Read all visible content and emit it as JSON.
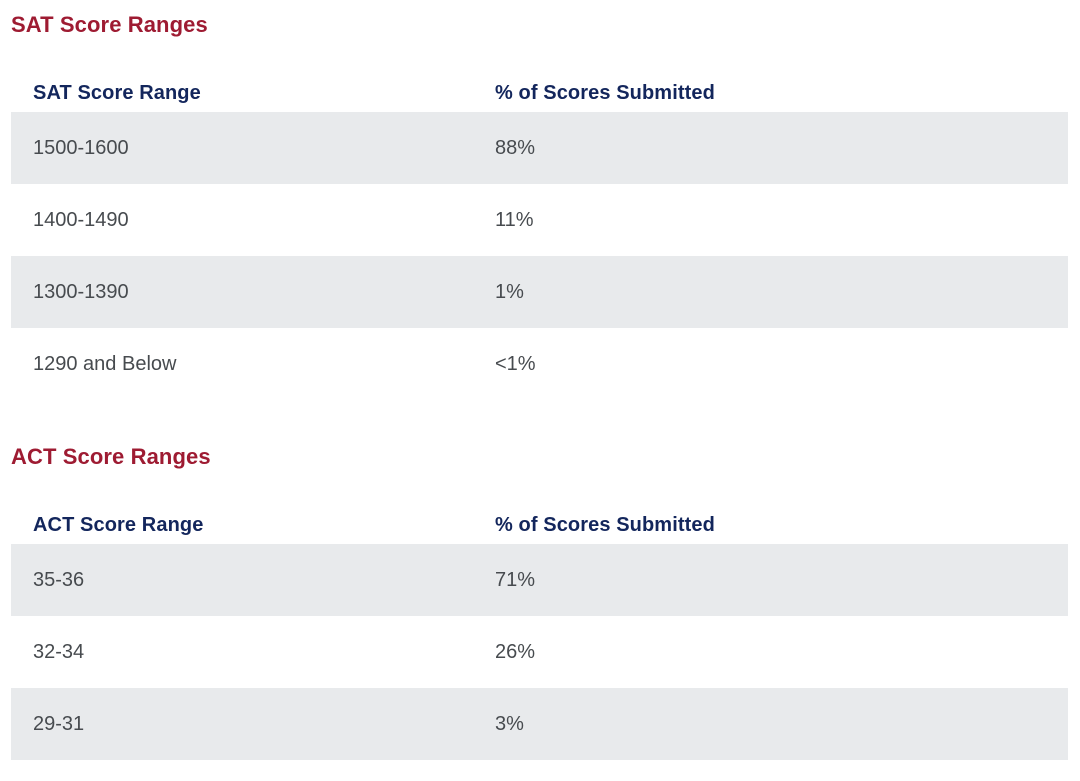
{
  "colors": {
    "section_heading": "#9E1B32",
    "table_header_text": "#13265C",
    "cell_text": "#474B4F",
    "alternating_row_background": "#E8EAEC",
    "page_background": "#FFFFFF"
  },
  "sections": [
    {
      "heading": "SAT Score Ranges",
      "table": {
        "columns": [
          "SAT Score Range",
          "% of Scores Submitted"
        ],
        "rows": [
          [
            "1500-1600",
            "88%"
          ],
          [
            "1400-1490",
            "11%"
          ],
          [
            "1300-1390",
            "1%"
          ],
          [
            "1290 and Below",
            "<1%"
          ]
        ]
      }
    },
    {
      "heading": "ACT Score Ranges",
      "table": {
        "columns": [
          "ACT Score Range",
          "% of Scores Submitted"
        ],
        "rows": [
          [
            "35-36",
            "71%"
          ],
          [
            "32-34",
            "26%"
          ],
          [
            "29-31",
            "3%"
          ]
        ]
      }
    }
  ]
}
